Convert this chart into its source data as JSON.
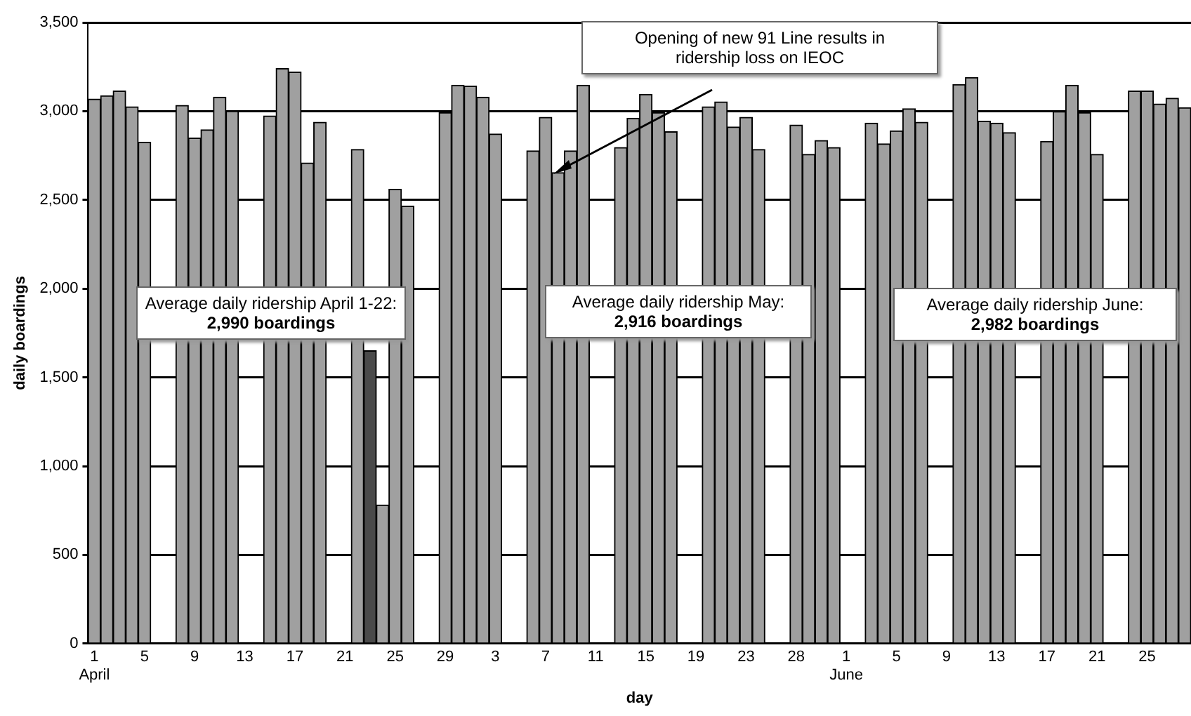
{
  "chart_data": {
    "type": "bar",
    "xlabel": "day",
    "ylabel": "daily boardings",
    "categories": [
      "1\nApril",
      null,
      null,
      null,
      "5",
      null,
      null,
      null,
      "9",
      null,
      null,
      null,
      "13",
      null,
      null,
      null,
      "17",
      null,
      null,
      null,
      "21",
      null,
      null,
      null,
      "25",
      null,
      null,
      null,
      "29",
      null,
      null,
      null,
      "3",
      null,
      null,
      null,
      "7",
      null,
      null,
      null,
      "11",
      null,
      null,
      null,
      "15",
      null,
      null,
      null,
      "19",
      null,
      null,
      null,
      "23",
      null,
      null,
      null,
      "28",
      null,
      null,
      null,
      "1\nJune",
      null,
      null,
      null,
      "5",
      null,
      null,
      null,
      "9",
      null,
      null,
      null,
      "13",
      null,
      null,
      null,
      "17",
      null,
      null,
      null,
      "21",
      null,
      null,
      null,
      "25",
      null,
      null,
      null
    ],
    "values": [
      3068,
      3087,
      3114,
      3025,
      2825,
      null,
      null,
      3033,
      2849,
      2895,
      3079,
      3000,
      null,
      null,
      2973,
      3240,
      3220,
      2708,
      2938,
      null,
      null,
      2784,
      1650,
      781,
      2560,
      2465,
      null,
      null,
      2992,
      3146,
      3141,
      3079,
      2871,
      null,
      null,
      2776,
      2965,
      2654,
      2776,
      3146,
      null,
      null,
      2795,
      2960,
      3095,
      2992,
      2884,
      null,
      null,
      3025,
      3052,
      2911,
      2965,
      2784,
      null,
      null,
      2922,
      2757,
      2835,
      2795,
      null,
      null,
      2933,
      2816,
      2889,
      3014,
      2938,
      null,
      null,
      3150,
      3190,
      2944,
      2933,
      2879,
      null,
      null,
      2830,
      2998,
      3146,
      2992,
      2757,
      null,
      null,
      3114,
      3114,
      3041,
      3073,
      3020
    ],
    "colors": [
      "#a0a0a0",
      "#a0a0a0",
      "#a0a0a0",
      "#a0a0a0",
      "#a0a0a0",
      "#a0a0a0",
      "#a0a0a0",
      "#a0a0a0",
      "#a0a0a0",
      "#a0a0a0",
      "#a0a0a0",
      "#a0a0a0",
      "#a0a0a0",
      "#a0a0a0",
      "#a0a0a0",
      "#a0a0a0",
      "#a0a0a0",
      "#a0a0a0",
      "#a0a0a0",
      "#a0a0a0",
      "#a0a0a0",
      "#a0a0a0",
      "#4a4a4a",
      "#a0a0a0",
      "#a0a0a0",
      "#a0a0a0",
      "#a0a0a0",
      "#a0a0a0",
      "#a0a0a0",
      "#a0a0a0",
      "#a0a0a0",
      "#a0a0a0",
      "#a0a0a0",
      "#a0a0a0",
      "#a0a0a0",
      "#a0a0a0",
      "#a0a0a0",
      "#a0a0a0",
      "#a0a0a0",
      "#a0a0a0",
      "#a0a0a0",
      "#a0a0a0",
      "#a0a0a0",
      "#a0a0a0",
      "#a0a0a0",
      "#a0a0a0",
      "#a0a0a0",
      "#a0a0a0",
      "#a0a0a0",
      "#a0a0a0",
      "#a0a0a0",
      "#a0a0a0",
      "#a0a0a0",
      "#a0a0a0",
      "#a0a0a0",
      "#a0a0a0",
      "#a0a0a0",
      "#a0a0a0",
      "#a0a0a0",
      "#a0a0a0",
      "#a0a0a0",
      "#a0a0a0",
      "#a0a0a0",
      "#a0a0a0",
      "#a0a0a0",
      "#a0a0a0",
      "#a0a0a0",
      "#a0a0a0",
      "#a0a0a0",
      "#a0a0a0",
      "#a0a0a0",
      "#a0a0a0",
      "#a0a0a0",
      "#a0a0a0",
      "#a0a0a0",
      "#a0a0a0",
      "#a0a0a0",
      "#a0a0a0",
      "#a0a0a0",
      "#a0a0a0",
      "#a0a0a0",
      "#a0a0a0",
      "#a0a0a0",
      "#a0a0a0",
      "#a0a0a0",
      "#a0a0a0",
      "#a0a0a0",
      "#a0a0a0"
    ],
    "ylim": [
      0,
      3500
    ],
    "yticks": [
      0,
      500,
      {
        "value": 1000,
        "label": "1,000"
      },
      {
        "value": 1500,
        "label": "1,500"
      },
      {
        "value": 2000,
        "label": "2,000"
      },
      {
        "value": 2500,
        "label": "2,500"
      },
      {
        "value": 3000,
        "label": "3,000"
      },
      {
        "value": 3500,
        "label": "3,500"
      }
    ],
    "grid": "y",
    "legend": false,
    "annotations": [
      "Opening of new 91 Line results in\nridership loss on IEOC",
      "Average daily ridership April 1-22:\n2,990 boardings",
      "Average daily ridership May:\n2,916 boardings",
      "Average daily ridership June:\n2,982 boardings"
    ]
  }
}
